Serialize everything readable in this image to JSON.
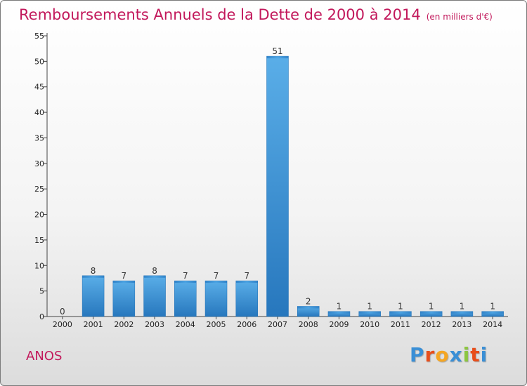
{
  "chart_data": {
    "type": "bar",
    "title": "Remboursements Annuels de la Dette de 2000 à 2014",
    "subtitle": "(en milliers d'€)",
    "categories": [
      "2000",
      "2001",
      "2002",
      "2003",
      "2004",
      "2005",
      "2006",
      "2007",
      "2008",
      "2009",
      "2010",
      "2011",
      "2012",
      "2013",
      "2014"
    ],
    "values": [
      0,
      8,
      7,
      8,
      7,
      7,
      7,
      51,
      2,
      1,
      1,
      1,
      1,
      1,
      1
    ],
    "ylim": [
      0,
      55
    ],
    "yticks": [
      0,
      5,
      10,
      15,
      20,
      25,
      30,
      35,
      40,
      45,
      50,
      55
    ],
    "grid": false,
    "bar_color": "#3a8fd6"
  },
  "footer": {
    "town": "ANOS",
    "logo": {
      "text": "Proxiti",
      "colors": [
        "#3a8fd6",
        "#e84e1b",
        "#f5a623",
        "#3a8fd6",
        "#8cc63f",
        "#e84e1b",
        "#3a8fd6"
      ]
    }
  }
}
